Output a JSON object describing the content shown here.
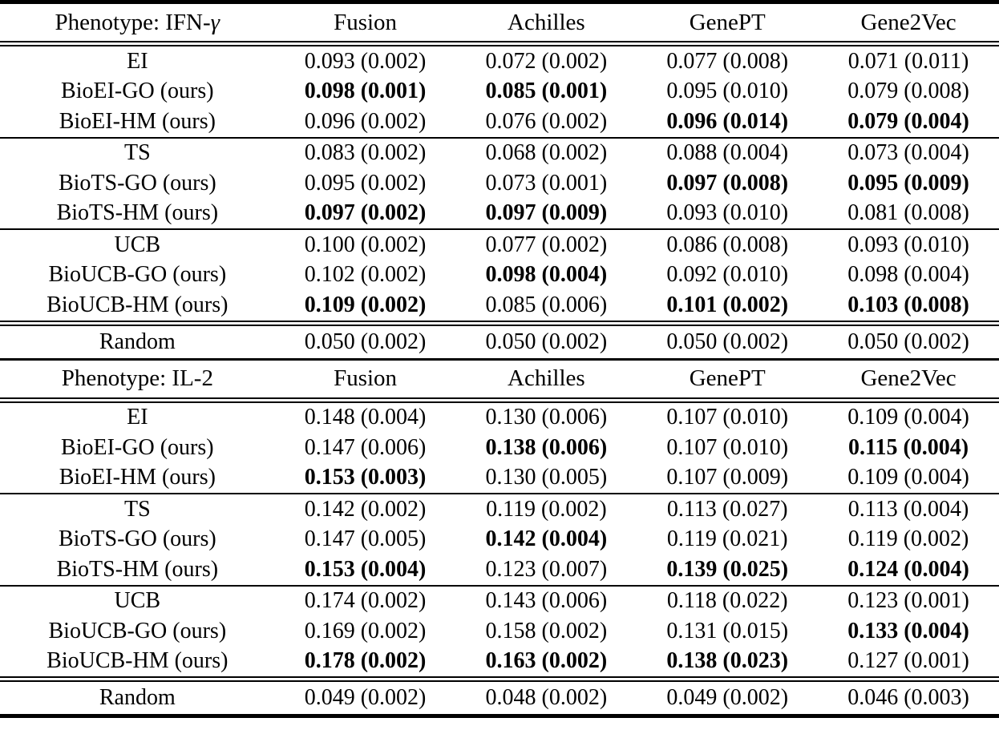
{
  "table": {
    "columns": [
      "Fusion",
      "Achilles",
      "GenePT",
      "Gene2Vec"
    ],
    "colors": {
      "text": "#000000",
      "background": "#ffffff",
      "rules": "#000000"
    },
    "sections": [
      {
        "phenotype_header": "Phenotype: IFN-γ",
        "groups": [
          [
            {
              "label": "EI",
              "cells": [
                "0.093 (0.002)",
                "0.072 (0.002)",
                "0.077 (0.008)",
                "0.071 (0.011)"
              ],
              "bold": [
                false,
                false,
                false,
                false
              ]
            },
            {
              "label": "BioEI-GO (ours)",
              "cells": [
                "0.098 (0.001)",
                "0.085 (0.001)",
                "0.095 (0.010)",
                "0.079 (0.008)"
              ],
              "bold": [
                true,
                true,
                false,
                false
              ]
            },
            {
              "label": "BioEI-HM (ours)",
              "cells": [
                "0.096 (0.002)",
                "0.076 (0.002)",
                "0.096 (0.014)",
                "0.079 (0.004)"
              ],
              "bold": [
                false,
                false,
                true,
                true
              ]
            }
          ],
          [
            {
              "label": "TS",
              "cells": [
                "0.083 (0.002)",
                "0.068 (0.002)",
                "0.088 (0.004)",
                "0.073 (0.004)"
              ],
              "bold": [
                false,
                false,
                false,
                false
              ]
            },
            {
              "label": "BioTS-GO (ours)",
              "cells": [
                "0.095 (0.002)",
                "0.073 (0.001)",
                "0.097 (0.008)",
                "0.095 (0.009)"
              ],
              "bold": [
                false,
                false,
                true,
                true
              ]
            },
            {
              "label": "BioTS-HM (ours)",
              "cells": [
                "0.097 (0.002)",
                "0.097 (0.009)",
                "0.093 (0.010)",
                "0.081 (0.008)"
              ],
              "bold": [
                true,
                true,
                false,
                false
              ]
            }
          ],
          [
            {
              "label": "UCB",
              "cells": [
                "0.100 (0.002)",
                "0.077 (0.002)",
                "0.086 (0.008)",
                "0.093 (0.010)"
              ],
              "bold": [
                false,
                false,
                false,
                false
              ]
            },
            {
              "label": "BioUCB-GO (ours)",
              "cells": [
                "0.102 (0.002)",
                "0.098 (0.004)",
                "0.092 (0.010)",
                "0.098 (0.004)"
              ],
              "bold": [
                false,
                true,
                false,
                false
              ]
            },
            {
              "label": "BioUCB-HM (ours)",
              "cells": [
                "0.109 (0.002)",
                "0.085 (0.006)",
                "0.101 (0.002)",
                "0.103 (0.008)"
              ],
              "bold": [
                true,
                false,
                true,
                true
              ]
            }
          ]
        ],
        "random_row": {
          "label": "Random",
          "cells": [
            "0.050 (0.002)",
            "0.050 (0.002)",
            "0.050 (0.002)",
            "0.050 (0.002)"
          ],
          "bold": [
            false,
            false,
            false,
            false
          ]
        }
      },
      {
        "phenotype_header": "Phenotype: IL-2",
        "groups": [
          [
            {
              "label": "EI",
              "cells": [
                "0.148 (0.004)",
                "0.130 (0.006)",
                "0.107 (0.010)",
                "0.109 (0.004)"
              ],
              "bold": [
                false,
                false,
                false,
                false
              ]
            },
            {
              "label": "BioEI-GO (ours)",
              "cells": [
                "0.147 (0.006)",
                "0.138 (0.006)",
                "0.107 (0.010)",
                "0.115 (0.004)"
              ],
              "bold": [
                false,
                true,
                false,
                true
              ]
            },
            {
              "label": "BioEI-HM (ours)",
              "cells": [
                "0.153 (0.003)",
                "0.130 (0.005)",
                "0.107 (0.009)",
                "0.109 (0.004)"
              ],
              "bold": [
                true,
                false,
                false,
                false
              ]
            }
          ],
          [
            {
              "label": "TS",
              "cells": [
                "0.142 (0.002)",
                "0.119 (0.002)",
                "0.113 (0.027)",
                "0.113 (0.004)"
              ],
              "bold": [
                false,
                false,
                false,
                false
              ]
            },
            {
              "label": "BioTS-GO (ours)",
              "cells": [
                "0.147 (0.005)",
                "0.142 (0.004)",
                "0.119 (0.021)",
                "0.119 (0.002)"
              ],
              "bold": [
                false,
                true,
                false,
                false
              ]
            },
            {
              "label": "BioTS-HM (ours)",
              "cells": [
                "0.153 (0.004)",
                "0.123 (0.007)",
                "0.139 (0.025)",
                "0.124 (0.004)"
              ],
              "bold": [
                true,
                false,
                true,
                true
              ]
            }
          ],
          [
            {
              "label": "UCB",
              "cells": [
                "0.174 (0.002)",
                "0.143 (0.006)",
                "0.118 (0.022)",
                "0.123 (0.001)"
              ],
              "bold": [
                false,
                false,
                false,
                false
              ]
            },
            {
              "label": "BioUCB-GO (ours)",
              "cells": [
                "0.169 (0.002)",
                "0.158 (0.002)",
                "0.131 (0.015)",
                "0.133 (0.004)"
              ],
              "bold": [
                false,
                false,
                false,
                true
              ]
            },
            {
              "label": "BioUCB-HM (ours)",
              "cells": [
                "0.178 (0.002)",
                "0.163 (0.002)",
                "0.138 (0.023)",
                "0.127 (0.001)"
              ],
              "bold": [
                true,
                true,
                true,
                false
              ]
            }
          ]
        ],
        "random_row": {
          "label": "Random",
          "cells": [
            "0.049 (0.002)",
            "0.048 (0.002)",
            "0.049 (0.002)",
            "0.046 (0.003)"
          ],
          "bold": [
            false,
            false,
            false,
            false
          ]
        }
      }
    ]
  }
}
